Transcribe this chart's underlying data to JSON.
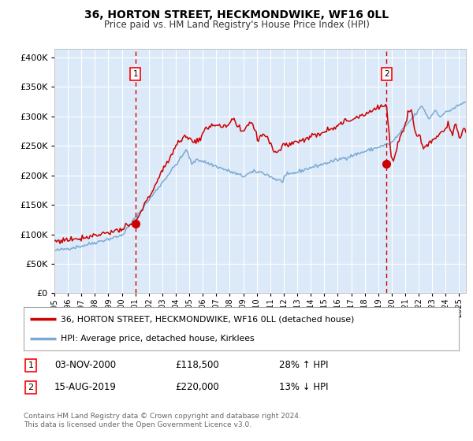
{
  "title": "36, HORTON STREET, HECKMONDWIKE, WF16 0LL",
  "subtitle": "Price paid vs. HM Land Registry's House Price Index (HPI)",
  "legend_line1": "36, HORTON STREET, HECKMONDWIKE, WF16 0LL (detached house)",
  "legend_line2": "HPI: Average price, detached house, Kirklees",
  "footnote1": "Contains HM Land Registry data © Crown copyright and database right 2024.",
  "footnote2": "This data is licensed under the Open Government Licence v3.0.",
  "point1_date": "03-NOV-2000",
  "point1_price": 118500,
  "point1_price_str": "£118,500",
  "point1_label": "28% ↑ HPI",
  "point2_date": "15-AUG-2019",
  "point2_price": 220000,
  "point2_price_str": "£220,000",
  "point2_label": "13% ↓ HPI",
  "yticks": [
    0,
    50000,
    100000,
    150000,
    200000,
    250000,
    300000,
    350000,
    400000
  ],
  "ymax": 415000,
  "ymin": 0,
  "xmin": 1995,
  "xmax": 2025.5,
  "background_color": "#ffffff",
  "plot_bg_color": "#dce9f8",
  "grid_color": "#ffffff",
  "red_line_color": "#cc0000",
  "blue_line_color": "#7aaad4",
  "vline_color": "#cc0000",
  "point_color": "#cc0000",
  "point1_x": 2001.0,
  "point2_x": 2019.62
}
